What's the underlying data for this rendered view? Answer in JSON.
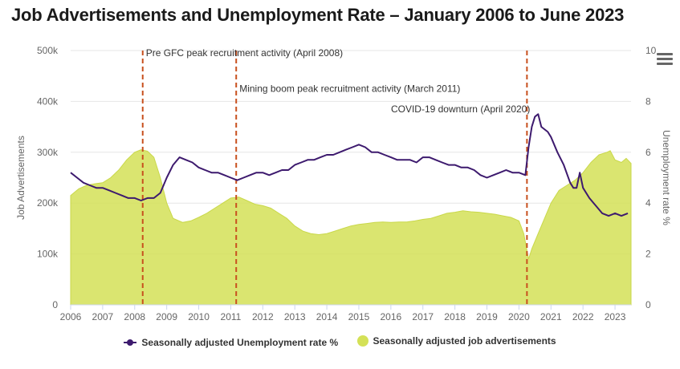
{
  "title": "Job Advertisements and Unemployment Rate – January 2006 to June 2023",
  "menu_icon": "hamburger-menu-icon",
  "colors": {
    "unemployment": "#3d1a6e",
    "ads_fill": "#d4e157",
    "annotation": "#c8501e"
  },
  "chart_data": {
    "type": "line",
    "title": "Job Advertisements and Unemployment Rate – January 2006 to June 2023",
    "xlabel": "",
    "x_range": [
      2006,
      2023.5
    ],
    "x_ticks": [
      "2006",
      "2007",
      "2008",
      "2009",
      "2010",
      "2011",
      "2012",
      "2013",
      "2014",
      "2015",
      "2016",
      "2017",
      "2018",
      "2019",
      "2020",
      "2021",
      "2022",
      "2023"
    ],
    "left_axis": {
      "label": "Job Advertisements",
      "range": [
        0,
        500000
      ],
      "ticks": [
        "0",
        "100k",
        "200k",
        "300k",
        "400k",
        "500k"
      ]
    },
    "right_axis": {
      "label": "Unemployment rate %",
      "range": [
        0,
        10
      ],
      "ticks": [
        "0",
        "2",
        "4",
        "6",
        "8",
        "10"
      ]
    },
    "series": [
      {
        "name": "Seasonally adjusted Unemployment rate %",
        "type": "line",
        "axis": "right",
        "points": [
          [
            2006.0,
            5.2
          ],
          [
            2006.2,
            5.0
          ],
          [
            2006.4,
            4.8
          ],
          [
            2006.6,
            4.7
          ],
          [
            2006.8,
            4.6
          ],
          [
            2007.0,
            4.6
          ],
          [
            2007.2,
            4.5
          ],
          [
            2007.4,
            4.4
          ],
          [
            2007.6,
            4.3
          ],
          [
            2007.8,
            4.2
          ],
          [
            2008.0,
            4.2
          ],
          [
            2008.2,
            4.1
          ],
          [
            2008.4,
            4.2
          ],
          [
            2008.6,
            4.2
          ],
          [
            2008.8,
            4.4
          ],
          [
            2009.0,
            5.0
          ],
          [
            2009.2,
            5.5
          ],
          [
            2009.4,
            5.8
          ],
          [
            2009.6,
            5.7
          ],
          [
            2009.8,
            5.6
          ],
          [
            2010.0,
            5.4
          ],
          [
            2010.2,
            5.3
          ],
          [
            2010.4,
            5.2
          ],
          [
            2010.6,
            5.2
          ],
          [
            2010.8,
            5.1
          ],
          [
            2011.0,
            5.0
          ],
          [
            2011.2,
            4.9
          ],
          [
            2011.4,
            5.0
          ],
          [
            2011.6,
            5.1
          ],
          [
            2011.8,
            5.2
          ],
          [
            2012.0,
            5.2
          ],
          [
            2012.2,
            5.1
          ],
          [
            2012.4,
            5.2
          ],
          [
            2012.6,
            5.3
          ],
          [
            2012.8,
            5.3
          ],
          [
            2013.0,
            5.5
          ],
          [
            2013.2,
            5.6
          ],
          [
            2013.4,
            5.7
          ],
          [
            2013.6,
            5.7
          ],
          [
            2013.8,
            5.8
          ],
          [
            2014.0,
            5.9
          ],
          [
            2014.2,
            5.9
          ],
          [
            2014.4,
            6.0
          ],
          [
            2014.6,
            6.1
          ],
          [
            2014.8,
            6.2
          ],
          [
            2015.0,
            6.3
          ],
          [
            2015.2,
            6.2
          ],
          [
            2015.4,
            6.0
          ],
          [
            2015.6,
            6.0
          ],
          [
            2015.8,
            5.9
          ],
          [
            2016.0,
            5.8
          ],
          [
            2016.2,
            5.7
          ],
          [
            2016.4,
            5.7
          ],
          [
            2016.6,
            5.7
          ],
          [
            2016.8,
            5.6
          ],
          [
            2017.0,
            5.8
          ],
          [
            2017.2,
            5.8
          ],
          [
            2017.4,
            5.7
          ],
          [
            2017.6,
            5.6
          ],
          [
            2017.8,
            5.5
          ],
          [
            2018.0,
            5.5
          ],
          [
            2018.2,
            5.4
          ],
          [
            2018.4,
            5.4
          ],
          [
            2018.6,
            5.3
          ],
          [
            2018.8,
            5.1
          ],
          [
            2019.0,
            5.0
          ],
          [
            2019.2,
            5.1
          ],
          [
            2019.4,
            5.2
          ],
          [
            2019.6,
            5.3
          ],
          [
            2019.8,
            5.2
          ],
          [
            2020.0,
            5.2
          ],
          [
            2020.2,
            5.1
          ],
          [
            2020.3,
            6.2
          ],
          [
            2020.4,
            7.0
          ],
          [
            2020.5,
            7.4
          ],
          [
            2020.6,
            7.5
          ],
          [
            2020.7,
            7.0
          ],
          [
            2020.9,
            6.8
          ],
          [
            2021.0,
            6.6
          ],
          [
            2021.2,
            6.0
          ],
          [
            2021.4,
            5.5
          ],
          [
            2021.6,
            4.8
          ],
          [
            2021.7,
            4.6
          ],
          [
            2021.8,
            4.6
          ],
          [
            2021.9,
            5.2
          ],
          [
            2022.0,
            4.6
          ],
          [
            2022.2,
            4.2
          ],
          [
            2022.4,
            3.9
          ],
          [
            2022.6,
            3.6
          ],
          [
            2022.8,
            3.5
          ],
          [
            2023.0,
            3.6
          ],
          [
            2023.2,
            3.5
          ],
          [
            2023.4,
            3.6
          ]
        ]
      },
      {
        "name": "Seasonally adjusted job advertisements",
        "type": "area",
        "axis": "left",
        "points": [
          [
            2006.0,
            215000
          ],
          [
            2006.25,
            228000
          ],
          [
            2006.5,
            235000
          ],
          [
            2006.75,
            238000
          ],
          [
            2007.0,
            240000
          ],
          [
            2007.25,
            250000
          ],
          [
            2007.5,
            265000
          ],
          [
            2007.75,
            285000
          ],
          [
            2008.0,
            300000
          ],
          [
            2008.2,
            305000
          ],
          [
            2008.4,
            302000
          ],
          [
            2008.6,
            290000
          ],
          [
            2008.8,
            250000
          ],
          [
            2009.0,
            200000
          ],
          [
            2009.2,
            170000
          ],
          [
            2009.5,
            162000
          ],
          [
            2009.75,
            165000
          ],
          [
            2010.0,
            172000
          ],
          [
            2010.25,
            180000
          ],
          [
            2010.5,
            190000
          ],
          [
            2010.75,
            200000
          ],
          [
            2011.0,
            210000
          ],
          [
            2011.25,
            212000
          ],
          [
            2011.5,
            205000
          ],
          [
            2011.75,
            198000
          ],
          [
            2012.0,
            195000
          ],
          [
            2012.25,
            190000
          ],
          [
            2012.5,
            180000
          ],
          [
            2012.75,
            170000
          ],
          [
            2013.0,
            155000
          ],
          [
            2013.25,
            145000
          ],
          [
            2013.5,
            140000
          ],
          [
            2013.75,
            138000
          ],
          [
            2014.0,
            140000
          ],
          [
            2014.25,
            145000
          ],
          [
            2014.5,
            150000
          ],
          [
            2014.75,
            155000
          ],
          [
            2015.0,
            158000
          ],
          [
            2015.25,
            160000
          ],
          [
            2015.5,
            162000
          ],
          [
            2015.75,
            163000
          ],
          [
            2016.0,
            162000
          ],
          [
            2016.25,
            163000
          ],
          [
            2016.5,
            163000
          ],
          [
            2016.75,
            165000
          ],
          [
            2017.0,
            168000
          ],
          [
            2017.25,
            170000
          ],
          [
            2017.5,
            175000
          ],
          [
            2017.75,
            180000
          ],
          [
            2018.0,
            182000
          ],
          [
            2018.25,
            185000
          ],
          [
            2018.5,
            183000
          ],
          [
            2018.75,
            182000
          ],
          [
            2019.0,
            180000
          ],
          [
            2019.25,
            178000
          ],
          [
            2019.5,
            175000
          ],
          [
            2019.75,
            172000
          ],
          [
            2020.0,
            165000
          ],
          [
            2020.15,
            140000
          ],
          [
            2020.3,
            90000
          ],
          [
            2020.4,
            110000
          ],
          [
            2020.6,
            140000
          ],
          [
            2020.8,
            170000
          ],
          [
            2021.0,
            200000
          ],
          [
            2021.25,
            225000
          ],
          [
            2021.5,
            235000
          ],
          [
            2021.75,
            245000
          ],
          [
            2022.0,
            260000
          ],
          [
            2022.25,
            280000
          ],
          [
            2022.5,
            295000
          ],
          [
            2022.75,
            300000
          ],
          [
            2022.85,
            303000
          ],
          [
            2023.0,
            285000
          ],
          [
            2023.2,
            280000
          ],
          [
            2023.35,
            288000
          ],
          [
            2023.5,
            278000
          ]
        ]
      }
    ],
    "annotations": [
      {
        "x": 2008.25,
        "label": "Pre GFC peak recruitment activity (April 2008)",
        "label_value": 495000
      },
      {
        "x": 2011.17,
        "label": "Mining boom peak recruitment activity (March 2011)",
        "label_value": 425000
      },
      {
        "x": 2020.25,
        "label": "COVID-19 downturn (April 2020)",
        "label_value": 385000
      }
    ],
    "legend": {
      "position": "bottom",
      "items": [
        "Seasonally adjusted Unemployment rate %",
        "Seasonally adjusted job advertisements"
      ]
    }
  }
}
